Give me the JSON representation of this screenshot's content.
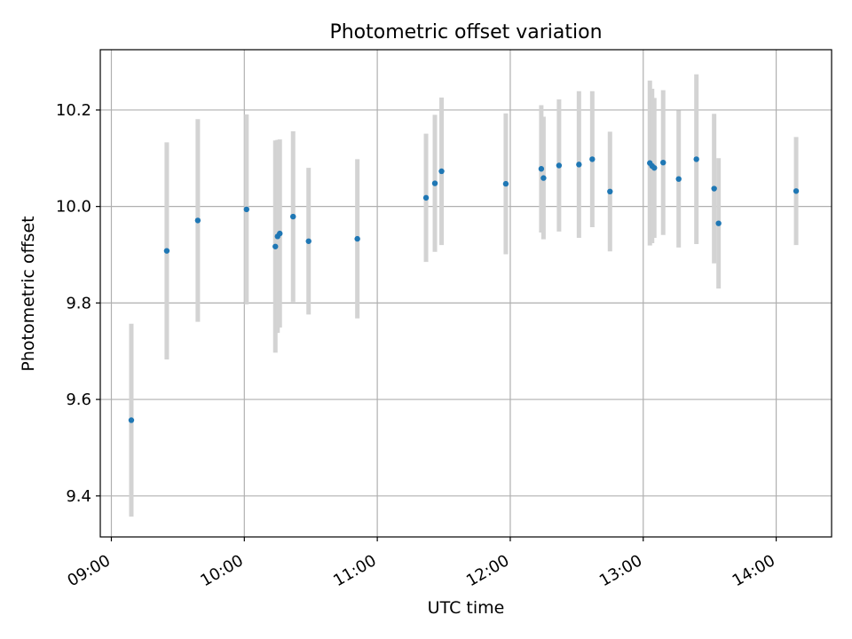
{
  "chart_data": {
    "type": "scatter",
    "title": "Photometric offset variation",
    "xlabel": "UTC time",
    "ylabel": "Photometric offset",
    "xlim": [
      "08:55",
      "14:25"
    ],
    "ylim": [
      9.315,
      10.325
    ],
    "x_ticks": [
      "09:00",
      "10:00",
      "11:00",
      "12:00",
      "13:00",
      "14:00"
    ],
    "y_ticks": [
      9.4,
      9.6,
      9.8,
      10.0,
      10.2
    ],
    "grid": true,
    "marker_color": "#1f77b4",
    "errorbar_color": "#d3d3d3",
    "points": [
      {
        "x": "09:09",
        "y": 9.557,
        "err": 0.2
      },
      {
        "x": "09:25",
        "y": 9.908,
        "err": 0.225
      },
      {
        "x": "09:39",
        "y": 9.971,
        "err": 0.21
      },
      {
        "x": "10:01",
        "y": 9.994,
        "err": 0.197
      },
      {
        "x": "10:14",
        "y": 9.917,
        "err": 0.22
      },
      {
        "x": "10:15",
        "y": 9.938,
        "err": 0.2
      },
      {
        "x": "10:16",
        "y": 9.944,
        "err": 0.195
      },
      {
        "x": "10:22",
        "y": 9.979,
        "err": 0.177
      },
      {
        "x": "10:29",
        "y": 9.928,
        "err": 0.152
      },
      {
        "x": "10:51",
        "y": 9.933,
        "err": 0.165
      },
      {
        "x": "11:22",
        "y": 10.018,
        "err": 0.133
      },
      {
        "x": "11:26",
        "y": 10.048,
        "err": 0.142
      },
      {
        "x": "11:29",
        "y": 10.073,
        "err": 0.153
      },
      {
        "x": "11:58",
        "y": 10.047,
        "err": 0.146
      },
      {
        "x": "12:14",
        "y": 10.078,
        "err": 0.132
      },
      {
        "x": "12:15",
        "y": 10.059,
        "err": 0.127
      },
      {
        "x": "12:22",
        "y": 10.085,
        "err": 0.137
      },
      {
        "x": "12:31",
        "y": 10.087,
        "err": 0.152
      },
      {
        "x": "12:37",
        "y": 10.098,
        "err": 0.141
      },
      {
        "x": "12:45",
        "y": 10.031,
        "err": 0.124
      },
      {
        "x": "13:03",
        "y": 10.09,
        "err": 0.171
      },
      {
        "x": "13:04",
        "y": 10.084,
        "err": 0.16
      },
      {
        "x": "13:05",
        "y": 10.08,
        "err": 0.145
      },
      {
        "x": "13:09",
        "y": 10.091,
        "err": 0.15
      },
      {
        "x": "13:16",
        "y": 10.057,
        "err": 0.142
      },
      {
        "x": "13:24",
        "y": 10.098,
        "err": 0.176
      },
      {
        "x": "13:32",
        "y": 10.037,
        "err": 0.155
      },
      {
        "x": "13:34",
        "y": 9.965,
        "err": 0.135
      },
      {
        "x": "14:09",
        "y": 10.032,
        "err": 0.112
      }
    ]
  }
}
